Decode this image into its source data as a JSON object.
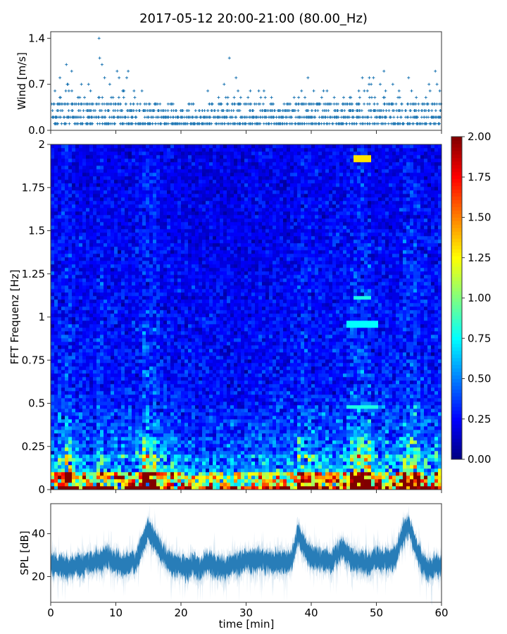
{
  "title": "2017-05-12 20:00-21:00 (80.00_Hz)",
  "chart_data": [
    {
      "type": "scatter",
      "ylabel": "Wind [m/s]",
      "xlim": [
        0,
        60
      ],
      "ylim": [
        0,
        1.5
      ],
      "yticks": [
        "0.0",
        "0.7",
        "1.4"
      ],
      "ytick_values": [
        0,
        0.7,
        1.4
      ],
      "xticks": [
        0,
        10,
        20,
        30,
        40,
        50,
        60
      ],
      "marker": "+",
      "color": "#1f77b4",
      "resolution": 0.1,
      "per_minute_max": [
        0.6,
        0.8,
        1.0,
        0.9,
        0.7,
        0.7,
        0.6,
        1.4,
        0.8,
        0.7,
        0.9,
        0.9,
        0.6,
        0.4,
        0.6,
        0.4,
        0.4,
        0.3,
        0.4,
        0.3,
        0.3,
        0.4,
        0.3,
        0.3,
        0.6,
        0.5,
        0.7,
        1.1,
        0.8,
        0.5,
        0.6,
        0.6,
        0.6,
        0.5,
        0.4,
        0.4,
        0.4,
        0.5,
        0.6,
        0.8,
        0.6,
        0.6,
        0.6,
        0.5,
        0.5,
        0.5,
        0.5,
        0.8,
        0.8,
        0.8,
        0.7,
        0.9,
        0.7,
        0.6,
        0.8,
        0.6,
        0.5,
        0.5,
        0.7,
        0.9
      ]
    },
    {
      "type": "heatmap",
      "ylabel": "FFT Frequenz [Hz]",
      "xlim": [
        0,
        60
      ],
      "ylim": [
        0,
        2
      ],
      "yticks": [
        "0",
        "0.25",
        "0.5",
        "0.75",
        "1",
        "1.25",
        "1.5",
        "1.75",
        "2"
      ],
      "ytick_values": [
        0,
        0.25,
        0.5,
        0.75,
        1,
        1.25,
        1.5,
        1.75,
        2
      ],
      "colormap": "jet",
      "clim": [
        0,
        2
      ],
      "colorbar_ticks": [
        "0.00",
        "0.25",
        "0.50",
        "0.75",
        "1.00",
        "1.25",
        "1.50",
        "1.75",
        "2.00"
      ],
      "freq_profile_hz_step": 0.1,
      "freq_profile": [
        1.3,
        0.6,
        0.45,
        0.38,
        0.34,
        0.3,
        0.28,
        0.27,
        0.27,
        0.26,
        0.26,
        0.25,
        0.25,
        0.24,
        0.24,
        0.23,
        0.23,
        0.22,
        0.22,
        0.22
      ],
      "time_profile": [
        1.0,
        1.1,
        1.2,
        1.1,
        1.0,
        1.0,
        0.95,
        1.1,
        1.0,
        1.0,
        1.0,
        1.0,
        1.0,
        1.05,
        1.3,
        1.2,
        1.1,
        1.0,
        1.0,
        1.0,
        0.95,
        0.95,
        0.9,
        0.9,
        0.95,
        0.9,
        0.9,
        0.95,
        0.9,
        0.9,
        0.95,
        0.95,
        0.95,
        0.95,
        0.95,
        0.95,
        0.95,
        1.0,
        1.15,
        1.1,
        1.05,
        1.0,
        1.0,
        1.0,
        1.05,
        1.05,
        1.2,
        1.25,
        1.2,
        1.05,
        1.0,
        1.0,
        1.0,
        1.05,
        1.2,
        1.25,
        1.15,
        1.05,
        1.0,
        1.05
      ],
      "features": [
        {
          "time": [
            46.5,
            49
          ],
          "freq": 1.92,
          "value": 1.3
        },
        {
          "time": [
            46.5,
            49
          ],
          "freq": 1.11,
          "value": 0.8
        },
        {
          "time": [
            45.5,
            50
          ],
          "freq": 0.96,
          "value": 0.75
        },
        {
          "time": [
            45.5,
            50
          ],
          "freq": 0.48,
          "value": 0.8
        }
      ]
    },
    {
      "type": "area",
      "ylabel": "SPL [dB]",
      "xlabel": "time [min]",
      "xlim": [
        0,
        60
      ],
      "ylim": [
        8,
        54
      ],
      "yticks": [
        "20",
        "40"
      ],
      "ytick_values": [
        20,
        40
      ],
      "xticks": [
        "0",
        "10",
        "20",
        "30",
        "40",
        "50",
        "60"
      ],
      "xtick_values": [
        0,
        10,
        20,
        30,
        40,
        50,
        60
      ],
      "color": "#1f77b4",
      "per_minute_mean": [
        26,
        25,
        25,
        24,
        26,
        25,
        27,
        27,
        28,
        29,
        27,
        26,
        26,
        27,
        34,
        42,
        36,
        32,
        27,
        25,
        25,
        24,
        26,
        23,
        27,
        25,
        24,
        24,
        26,
        26,
        28,
        27,
        28,
        27,
        27,
        27,
        26,
        28,
        40,
        34,
        29,
        28,
        28,
        27,
        31,
        33,
        28,
        27,
        27,
        26,
        29,
        28,
        28,
        30,
        39,
        44,
        34,
        27,
        23,
        25
      ]
    }
  ]
}
